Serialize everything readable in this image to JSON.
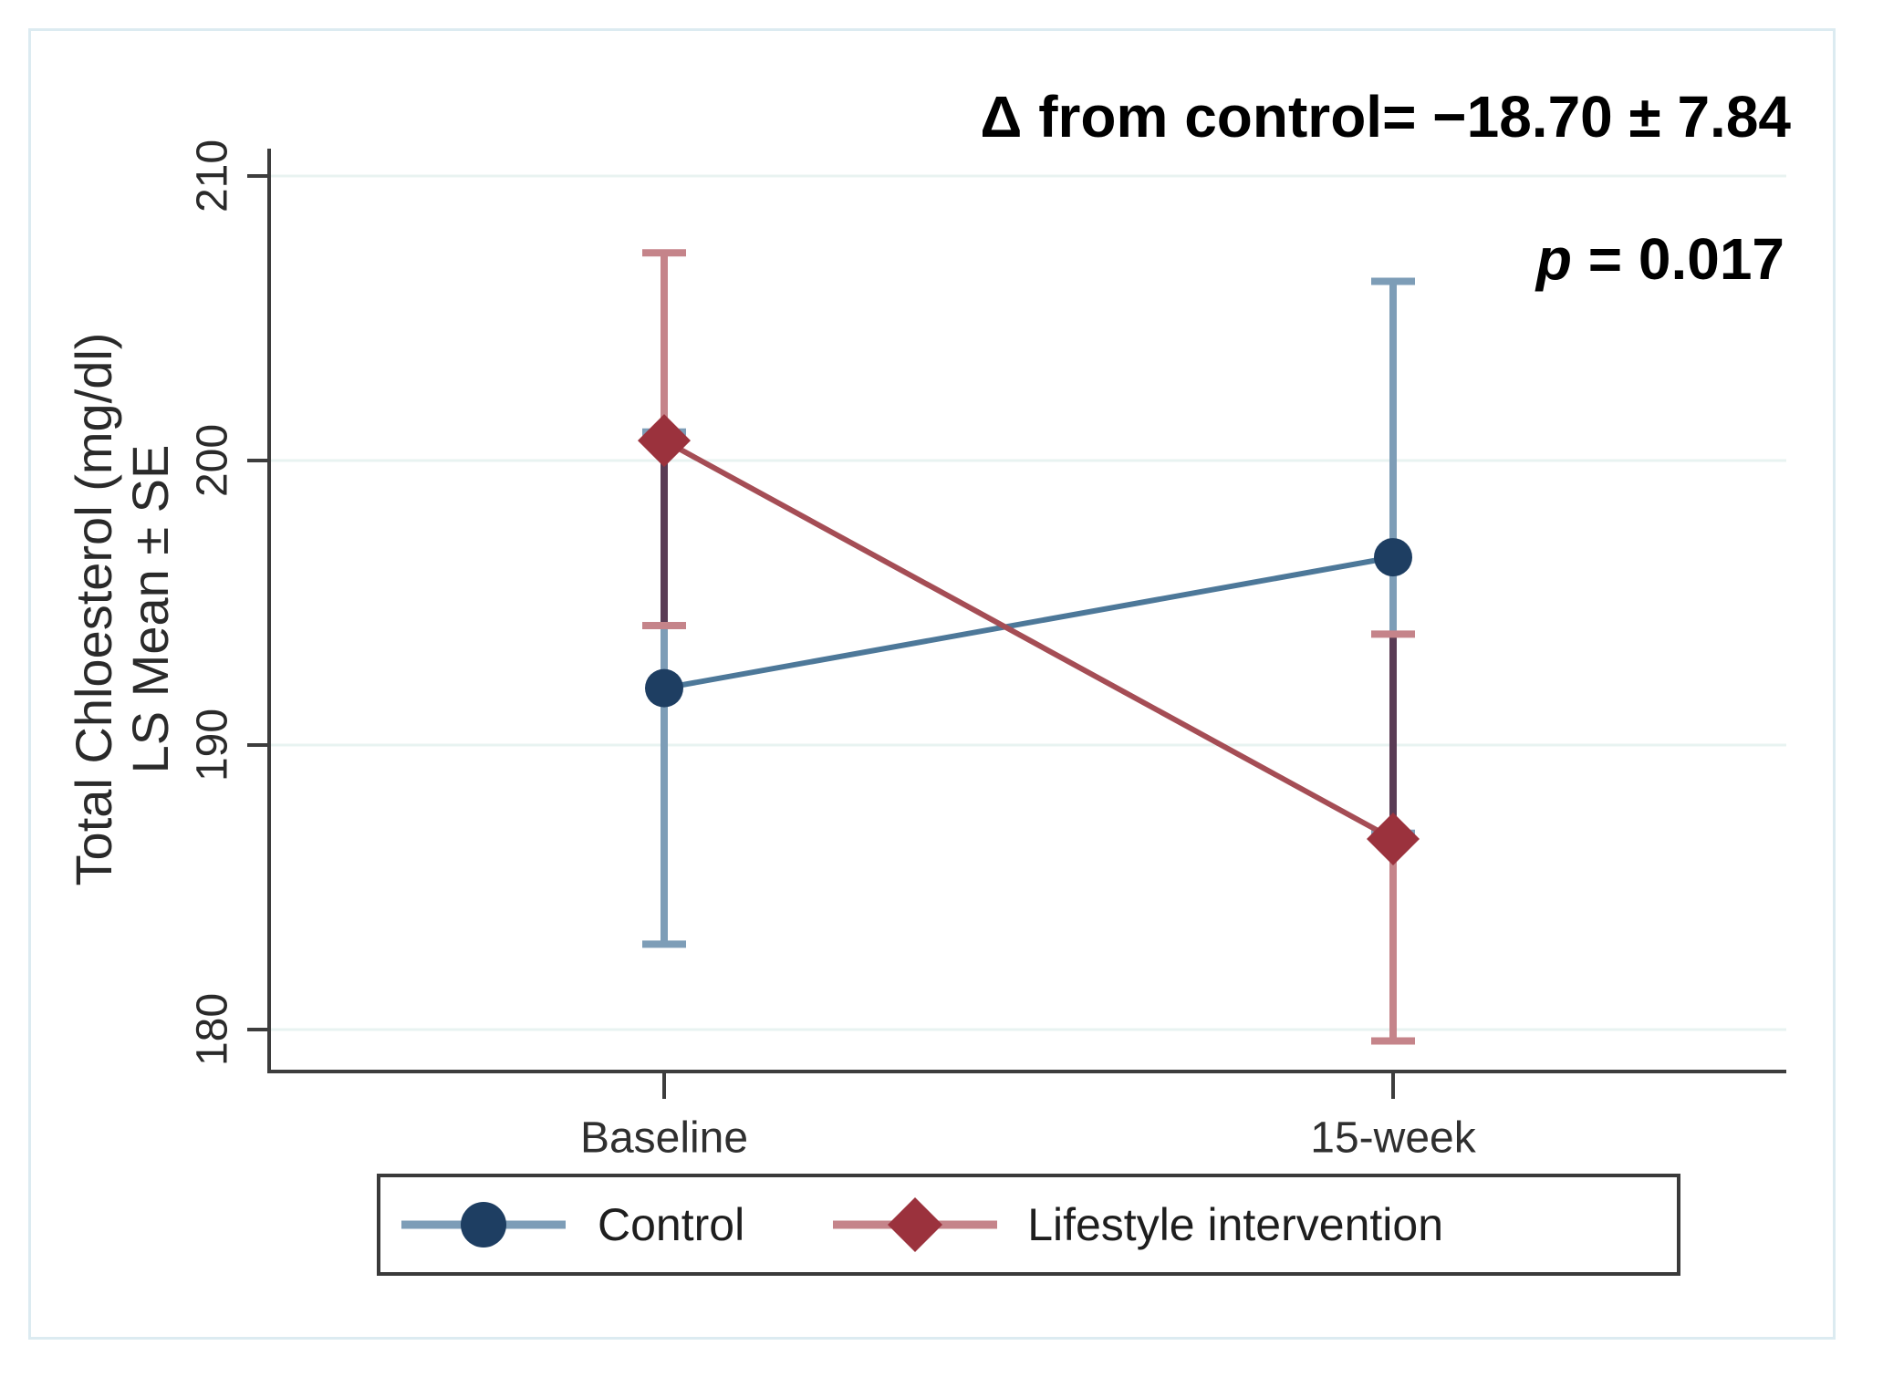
{
  "figure": {
    "annotation": {
      "p_symbol": "p",
      "p_rest": " = 0.017"
    }
  },
  "colors": {
    "grid": "#e8f3f1",
    "axis": "#3d3d3d",
    "overlap": "#5a3c55",
    "frame": "#dcebf1",
    "legend_border": "#3a3a3a",
    "annotation_text": "#000000"
  },
  "chart_data": {
    "type": "line",
    "title": "",
    "categories": [
      "Baseline",
      "15-week"
    ],
    "xlabel": "",
    "ylabel_line1": "Total Chloesterol (mg/dl)",
    "ylabel_line2": "LS Mean ± SE",
    "yticks": [
      180,
      190,
      200,
      210
    ],
    "ylim": [
      178.5,
      211
    ],
    "grid": true,
    "legend_position": "bottom",
    "annotations": [
      "Δ from control= −18.70 ± 7.84",
      "p = 0.017"
    ],
    "series": [
      {
        "name": "Control",
        "marker": "circle",
        "values": [
          192.0,
          196.6
        ],
        "error_low": [
          183.0,
          186.9
        ],
        "error_high": [
          201.0,
          206.3
        ],
        "color": "#1e3e62",
        "line_color": "#4d7899",
        "errorbar_color": "#7d9db7"
      },
      {
        "name": "Lifestyle intervention",
        "marker": "diamond",
        "values": [
          200.7,
          186.7
        ],
        "error_low": [
          194.2,
          179.6
        ],
        "error_high": [
          207.3,
          193.9
        ],
        "color": "#9b323d",
        "line_color": "#a54d55",
        "errorbar_color": "#c5848a"
      }
    ]
  }
}
